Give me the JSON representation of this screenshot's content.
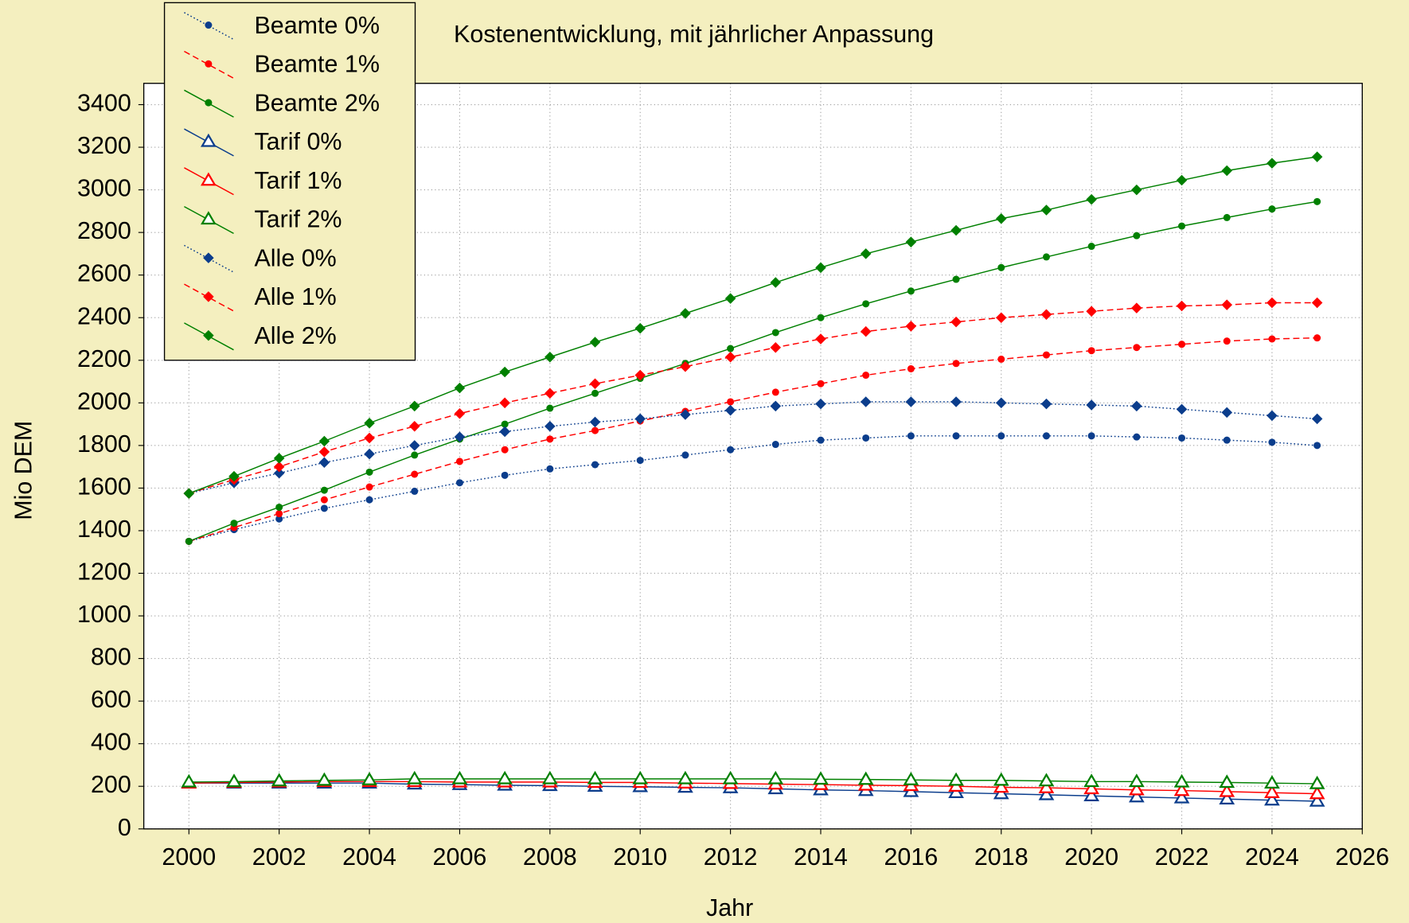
{
  "chart_data": {
    "type": "line",
    "title": "Kostenentwicklung, mit jährlicher Anpassung",
    "x_label": "Jahr",
    "y_label": "Mio DEM",
    "x": [
      2000,
      2001,
      2002,
      2003,
      2004,
      2005,
      2006,
      2007,
      2008,
      2009,
      2010,
      2011,
      2012,
      2013,
      2014,
      2015,
      2016,
      2017,
      2018,
      2019,
      2020,
      2021,
      2022,
      2023,
      2024,
      2025
    ],
    "xlim": [
      1999,
      2026
    ],
    "xticks": [
      2000,
      2002,
      2004,
      2006,
      2008,
      2010,
      2012,
      2014,
      2016,
      2018,
      2020,
      2022,
      2024,
      2026
    ],
    "ylim": [
      0,
      3500
    ],
    "yticks": [
      0,
      200,
      400,
      600,
      800,
      1000,
      1200,
      1400,
      1600,
      1800,
      2000,
      2200,
      2400,
      2600,
      2800,
      3000,
      3200,
      3400
    ],
    "grid": true,
    "legend": "top-left",
    "series": [
      {
        "name": "Beamte 0%",
        "color": "#0b3d8c",
        "marker": "circle",
        "line": "dotted",
        "values": [
          1350,
          1405,
          1455,
          1505,
          1545,
          1585,
          1625,
          1660,
          1690,
          1710,
          1730,
          1755,
          1780,
          1805,
          1825,
          1835,
          1845,
          1845,
          1845,
          1845,
          1845,
          1840,
          1835,
          1825,
          1815,
          1800
        ]
      },
      {
        "name": "Beamte 1%",
        "color": "#ff0000",
        "marker": "circle",
        "line": "dashed",
        "values": [
          1350,
          1415,
          1480,
          1545,
          1605,
          1665,
          1725,
          1780,
          1830,
          1870,
          1915,
          1960,
          2005,
          2050,
          2090,
          2130,
          2160,
          2185,
          2205,
          2225,
          2245,
          2260,
          2275,
          2290,
          2300,
          2305
        ]
      },
      {
        "name": "Beamte 2%",
        "color": "#008000",
        "marker": "circle",
        "line": "solid",
        "values": [
          1350,
          1435,
          1510,
          1590,
          1675,
          1755,
          1830,
          1900,
          1975,
          2045,
          2115,
          2185,
          2255,
          2330,
          2400,
          2465,
          2525,
          2580,
          2635,
          2685,
          2735,
          2785,
          2830,
          2870,
          2910,
          2945
        ]
      },
      {
        "name": "Tarif 0%",
        "color": "#0b3d8c",
        "marker": "triangle",
        "line": "solid",
        "values": [
          215,
          215,
          215,
          215,
          215,
          210,
          208,
          205,
          203,
          200,
          198,
          195,
          193,
          188,
          183,
          180,
          175,
          170,
          165,
          160,
          155,
          150,
          145,
          140,
          135,
          130
        ]
      },
      {
        "name": "Tarif 1%",
        "color": "#ff0000",
        "marker": "triangle",
        "line": "solid",
        "values": [
          215,
          218,
          220,
          222,
          222,
          222,
          220,
          220,
          220,
          218,
          218,
          215,
          213,
          210,
          208,
          205,
          203,
          200,
          195,
          193,
          188,
          183,
          180,
          175,
          170,
          165
        ]
      },
      {
        "name": "Tarif 2%",
        "color": "#008000",
        "marker": "triangle",
        "line": "solid",
        "values": [
          220,
          222,
          225,
          228,
          230,
          235,
          235,
          235,
          235,
          235,
          235,
          235,
          235,
          235,
          233,
          232,
          230,
          228,
          228,
          225,
          222,
          222,
          220,
          218,
          215,
          212
        ]
      },
      {
        "name": "Alle 0%",
        "color": "#0b3d8c",
        "marker": "diamond",
        "line": "dotted",
        "values": [
          1575,
          1625,
          1670,
          1720,
          1760,
          1800,
          1840,
          1865,
          1890,
          1910,
          1925,
          1945,
          1965,
          1985,
          1995,
          2005,
          2005,
          2005,
          2000,
          1995,
          1990,
          1985,
          1970,
          1955,
          1940,
          1925
        ]
      },
      {
        "name": "Alle 1%",
        "color": "#ff0000",
        "marker": "diamond",
        "line": "dashed",
        "values": [
          1575,
          1640,
          1700,
          1770,
          1835,
          1890,
          1950,
          2000,
          2045,
          2090,
          2130,
          2170,
          2215,
          2260,
          2300,
          2335,
          2360,
          2380,
          2400,
          2415,
          2430,
          2445,
          2455,
          2460,
          2470,
          2470
        ]
      },
      {
        "name": "Alle 2%",
        "color": "#008000",
        "marker": "diamond",
        "line": "solid",
        "values": [
          1575,
          1655,
          1740,
          1820,
          1905,
          1985,
          2070,
          2145,
          2215,
          2285,
          2350,
          2420,
          2490,
          2565,
          2635,
          2700,
          2755,
          2810,
          2865,
          2905,
          2955,
          3000,
          3045,
          3090,
          3125,
          3155
        ]
      }
    ]
  }
}
